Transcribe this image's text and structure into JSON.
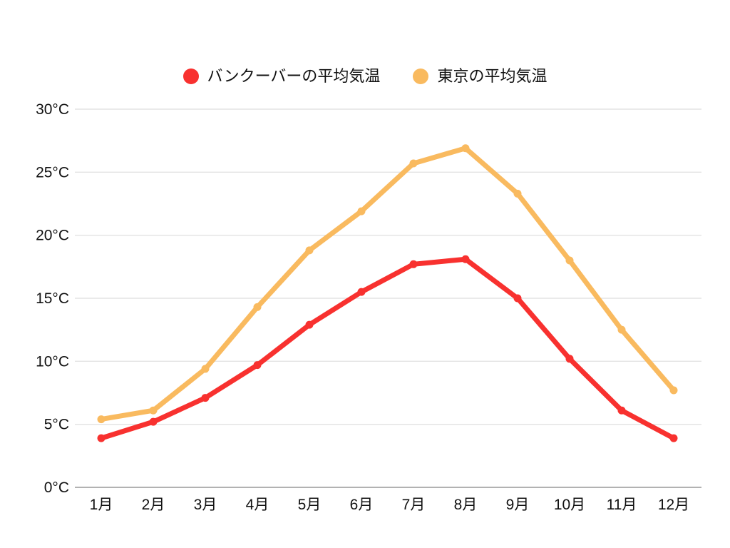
{
  "chart_data": {
    "type": "line",
    "categories": [
      "1月",
      "2月",
      "3月",
      "4月",
      "5月",
      "6月",
      "7月",
      "8月",
      "9月",
      "10月",
      "11月",
      "12月"
    ],
    "series": [
      {
        "name": "バンクーバーの平均気温",
        "color": "#f8312f",
        "values": [
          3.9,
          5.2,
          7.1,
          9.7,
          12.9,
          15.5,
          17.7,
          18.1,
          15.0,
          10.2,
          6.1,
          3.9
        ]
      },
      {
        "name": "東京の平均気温",
        "color": "#f9ba5f",
        "values": [
          5.4,
          6.1,
          9.4,
          14.3,
          18.8,
          21.9,
          25.7,
          26.9,
          23.3,
          18.0,
          12.5,
          7.7
        ]
      }
    ],
    "title": "",
    "xlabel": "",
    "ylabel": "",
    "ylim": [
      0,
      30
    ],
    "y_tick_step": 5,
    "y_tick_suffix": "°C",
    "y_tick_labels": [
      "0°C",
      "5°C",
      "10°C",
      "15°C",
      "20°C",
      "25°C",
      "30°C"
    ],
    "grid": true,
    "legend_position": "top",
    "colors": {
      "grid_line": "#e3e3e3",
      "zero_line": "#989898",
      "tick_text": "#111111"
    }
  }
}
